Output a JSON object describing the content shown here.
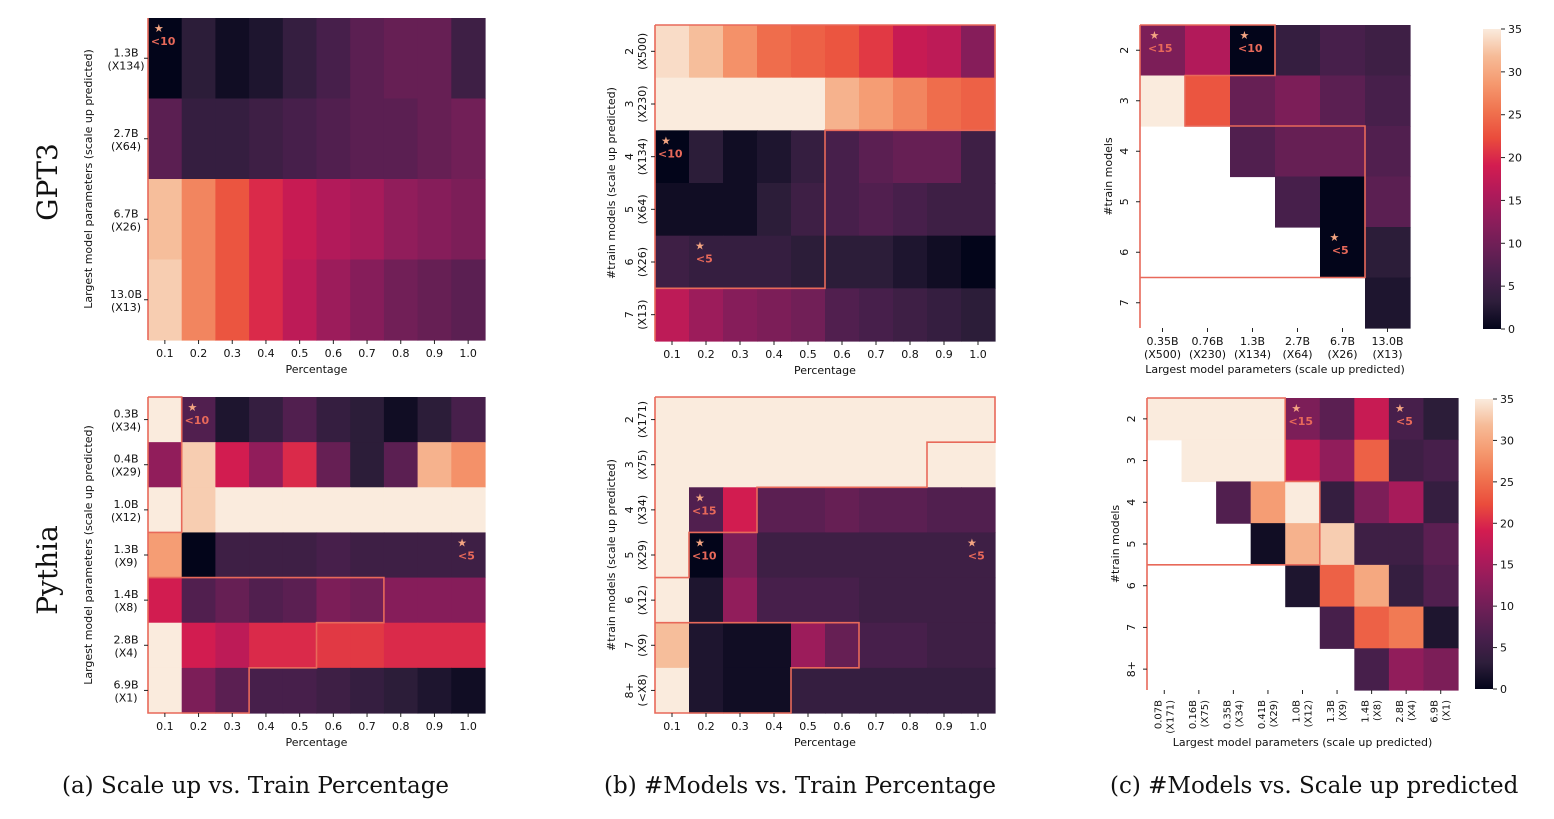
{
  "captions": [
    "(a) Scale up vs. Train Percentage",
    "(b) #Models vs. Train Percentage",
    "(c) #Models vs. Scale up predicted"
  ],
  "row_labels": [
    "GPT3",
    "Pythia"
  ],
  "colorbar": {
    "ticks": [
      "0",
      "5",
      "10",
      "15",
      "20",
      "25",
      "30",
      "35"
    ],
    "max": 35
  },
  "palette": [
    "#03051a",
    "#2e1e3b",
    "#4a1f4d",
    "#6c1f56",
    "#8e1d5b",
    "#b11a5a",
    "#d31c50",
    "#ea4c3c",
    "#f0734f",
    "#f5996f",
    "#f6bb97",
    "#faebdd"
  ],
  "highlight_color": "#e8695a",
  "star_color": "#f4a582",
  "chart_data": [
    {
      "id": "gpt3-a",
      "type": "heatmap",
      "xlabel": "Percentage",
      "ylabel": "Largest model parameters (scale up predicted)",
      "x_ticks": [
        "0.1",
        "0.2",
        "0.3",
        "0.4",
        "0.5",
        "0.6",
        "0.7",
        "0.8",
        "0.9",
        "1.0"
      ],
      "y_ticks": [
        [
          "1.3B",
          "(X134)"
        ],
        [
          "2.7B",
          "(X64)"
        ],
        [
          "6.7B",
          "(X26)"
        ],
        [
          "13.0B",
          "(X13)"
        ]
      ],
      "values": [
        [
          0,
          3,
          1,
          2,
          4,
          6,
          8,
          9,
          9,
          5
        ],
        [
          8,
          4,
          4,
          5,
          6,
          7,
          8,
          8,
          9,
          10
        ],
        [
          32,
          27,
          23,
          20,
          18,
          16,
          15,
          13,
          12,
          11
        ],
        [
          33,
          27,
          23,
          20,
          17,
          14,
          12,
          10,
          9,
          8
        ]
      ],
      "stars": [
        {
          "row": 0,
          "col": 0,
          "label": "<10"
        }
      ],
      "boundary": [
        [
          0,
          0,
          0
        ],
        [
          0,
          0,
          1
        ],
        [
          0,
          0,
          2
        ],
        [
          0,
          0,
          3
        ]
      ]
    },
    {
      "id": "gpt3-b",
      "type": "heatmap",
      "xlabel": "Percentage",
      "ylabel": "#train models (scale up predicted)",
      "x_ticks": [
        "0.1",
        "0.2",
        "0.3",
        "0.4",
        "0.5",
        "0.6",
        "0.7",
        "0.8",
        "0.9",
        "1.0"
      ],
      "y_ticks": [
        [
          "2",
          "(X500)"
        ],
        [
          "3",
          "(X230)"
        ],
        [
          "4",
          "(X134)"
        ],
        [
          "5",
          "(X64)"
        ],
        [
          "6",
          "(X26)"
        ],
        [
          "7",
          "(X13)"
        ]
      ],
      "values": [
        [
          34,
          32,
          28,
          25,
          24,
          23,
          21,
          18,
          17,
          12
        ],
        [
          35,
          35,
          35,
          35,
          35,
          31,
          29,
          27,
          25,
          24
        ],
        [
          0,
          3,
          1,
          2,
          4,
          6,
          8,
          9,
          9,
          5
        ],
        [
          1,
          1,
          1,
          3,
          5,
          6,
          7,
          6,
          5,
          5
        ],
        [
          5,
          4,
          4,
          4,
          3,
          3,
          3,
          2,
          1,
          0
        ],
        [
          17,
          14,
          12,
          11,
          10,
          7,
          6,
          5,
          4,
          3
        ]
      ],
      "stars": [
        {
          "row": 2,
          "col": 0,
          "label": "<10"
        },
        {
          "row": 4,
          "col": 1,
          "label": "<5"
        }
      ],
      "boundary": [
        [
          0,
          10,
          0
        ],
        [
          0,
          10,
          1
        ],
        [
          0,
          5,
          2
        ],
        [
          0,
          5,
          3
        ],
        [
          0,
          5,
          4
        ],
        [
          0,
          0,
          5
        ]
      ]
    },
    {
      "id": "gpt3-c",
      "type": "heatmap",
      "xlabel": "Largest model parameters (scale up predicted)",
      "ylabel": "#train models",
      "x_ticks": [
        [
          "0.35B",
          "(X500)"
        ],
        [
          "0.76B",
          "(X230)"
        ],
        [
          "1.3B",
          "(X134)"
        ],
        [
          "2.7B",
          "(X64)"
        ],
        [
          "6.7B",
          "(X26)"
        ],
        [
          "13.0B",
          "(X13)"
        ]
      ],
      "y_ticks": [
        "2",
        "3",
        "4",
        "5",
        "6",
        "7"
      ],
      "values": [
        [
          11,
          16,
          0,
          4,
          6,
          5
        ],
        [
          35,
          23,
          9,
          11,
          8,
          6
        ],
        [
          null,
          null,
          7,
          9,
          9,
          7
        ],
        [
          null,
          null,
          null,
          6,
          0,
          8
        ],
        [
          null,
          null,
          null,
          null,
          0,
          3
        ],
        [
          null,
          null,
          null,
          null,
          null,
          2
        ]
      ],
      "stars": [
        {
          "row": 0,
          "col": 0,
          "label": "<15"
        },
        {
          "row": 0,
          "col": 2,
          "label": "<10"
        },
        {
          "row": 4,
          "col": 4,
          "label": "<5"
        }
      ],
      "boundary": [
        [
          0,
          3,
          0
        ],
        [
          0,
          1,
          1
        ],
        [
          0,
          5,
          2
        ],
        [
          0,
          5,
          3
        ],
        [
          0,
          5,
          4
        ],
        [
          0,
          0,
          5
        ]
      ]
    },
    {
      "id": "pythia-a",
      "type": "heatmap",
      "xlabel": "Percentage",
      "ylabel": "Largest model parameters (scale up predicted)",
      "x_ticks": [
        "0.1",
        "0.2",
        "0.3",
        "0.4",
        "0.5",
        "0.6",
        "0.7",
        "0.8",
        "0.9",
        "1.0"
      ],
      "y_ticks": [
        [
          "0.3B",
          "(X34)"
        ],
        [
          "0.4B",
          "(X29)"
        ],
        [
          "1.0B",
          "(X12)"
        ],
        [
          "1.3B",
          "(X9)"
        ],
        [
          "1.4B",
          "(X8)"
        ],
        [
          "2.8B",
          "(X4)"
        ],
        [
          "6.9B",
          "(X1)"
        ]
      ],
      "values": [
        [
          35,
          7,
          2,
          4,
          7,
          4,
          3,
          1,
          3,
          6
        ],
        [
          13,
          33,
          19,
          13,
          20,
          9,
          3,
          8,
          31,
          28
        ],
        [
          35,
          33,
          35,
          35,
          35,
          35,
          35,
          35,
          35,
          35
        ],
        [
          29,
          0,
          5,
          5,
          5,
          6,
          5,
          5,
          5,
          5
        ],
        [
          19,
          7,
          9,
          7,
          8,
          11,
          10,
          12,
          12,
          12
        ],
        [
          35,
          19,
          17,
          20,
          20,
          21,
          21,
          20,
          20,
          20
        ],
        [
          35,
          11,
          8,
          6,
          6,
          5,
          4,
          3,
          2,
          1
        ]
      ],
      "stars": [
        {
          "row": 0,
          "col": 1,
          "label": "<10"
        },
        {
          "row": 3,
          "col": 9,
          "label": "<5"
        }
      ],
      "boundary": [
        [
          0,
          1,
          0
        ],
        [
          0,
          1,
          1
        ],
        [
          0,
          1,
          2
        ],
        [
          0,
          0,
          3
        ],
        [
          0,
          7,
          4
        ],
        [
          0,
          5,
          5
        ],
        [
          0,
          3,
          6
        ]
      ]
    },
    {
      "id": "pythia-b",
      "type": "heatmap",
      "xlabel": "Percentage",
      "ylabel": "#train models (scale up predicted)",
      "x_ticks": [
        "0.1",
        "0.2",
        "0.3",
        "0.4",
        "0.5",
        "0.6",
        "0.7",
        "0.8",
        "0.9",
        "1.0"
      ],
      "y_ticks": [
        [
          "2",
          "(X171)"
        ],
        [
          "3",
          "(X75)"
        ],
        [
          "4",
          "(X34)"
        ],
        [
          "5",
          "(X29)"
        ],
        [
          "6",
          "(X12)"
        ],
        [
          "7",
          "(X9)"
        ],
        [
          "8+",
          "(<X8)"
        ]
      ],
      "values": [
        [
          35,
          35,
          35,
          35,
          35,
          35,
          35,
          35,
          35,
          35
        ],
        [
          35,
          35,
          35,
          35,
          35,
          35,
          35,
          35,
          35,
          35
        ],
        [
          35,
          7,
          19,
          8,
          8,
          9,
          8,
          8,
          7,
          7
        ],
        [
          35,
          0,
          11,
          5,
          5,
          5,
          5,
          5,
          5,
          5
        ],
        [
          35,
          2,
          13,
          6,
          6,
          6,
          5,
          5,
          5,
          5
        ],
        [
          32,
          2,
          1,
          1,
          14,
          9,
          6,
          6,
          5,
          5
        ],
        [
          35,
          2,
          1,
          1,
          4,
          4,
          4,
          4,
          4,
          4
        ]
      ],
      "stars": [
        {
          "row": 2,
          "col": 1,
          "label": "<15"
        },
        {
          "row": 3,
          "col": 1,
          "label": "<10"
        },
        {
          "row": 3,
          "col": 9,
          "label": "<5"
        }
      ],
      "boundary": [
        [
          0,
          10,
          0
        ],
        [
          0,
          8,
          1
        ],
        [
          0,
          3,
          2
        ],
        [
          0,
          1,
          3
        ],
        [
          0,
          0,
          4
        ],
        [
          0,
          6,
          5
        ],
        [
          0,
          4,
          6
        ]
      ]
    },
    {
      "id": "pythia-c",
      "type": "heatmap",
      "xlabel": "Largest model parameters (scale up predicted)",
      "ylabel": "#train models",
      "x_ticks": [
        [
          "0.07B",
          "(X171)"
        ],
        [
          "0.16B",
          "(X75)"
        ],
        [
          "0.35B",
          "(X34)"
        ],
        [
          "0.41B",
          "(X29)"
        ],
        [
          "1.0B",
          "(X12)"
        ],
        [
          "1.3B",
          "(X9)"
        ],
        [
          "1.4B",
          "(X8)"
        ],
        [
          "2.8B",
          "(X4)"
        ],
        [
          "6.9B",
          "(X1)"
        ]
      ],
      "y_ticks": [
        "2",
        "3",
        "4",
        "5",
        "6",
        "7",
        "8+"
      ],
      "values": [
        [
          35,
          35,
          35,
          35,
          11,
          8,
          18,
          6,
          3
        ],
        [
          null,
          35,
          35,
          35,
          18,
          13,
          24,
          5,
          6
        ],
        [
          null,
          null,
          7,
          29,
          35,
          4,
          11,
          15,
          4
        ],
        [
          null,
          null,
          null,
          1,
          31,
          33,
          5,
          5,
          8
        ],
        [
          null,
          null,
          null,
          null,
          2,
          24,
          30,
          4,
          7
        ],
        [
          null,
          null,
          null,
          null,
          null,
          6,
          24,
          26,
          2
        ],
        [
          null,
          null,
          null,
          null,
          null,
          null,
          6,
          13,
          11
        ]
      ],
      "stars": [
        {
          "row": 0,
          "col": 4,
          "label": "<15"
        },
        {
          "row": 0,
          "col": 7,
          "label": "<5"
        }
      ],
      "boundary": [
        [
          0,
          4,
          0
        ],
        [
          0,
          4,
          1
        ],
        [
          0,
          5,
          2
        ],
        [
          0,
          5,
          3
        ],
        [
          0,
          0,
          4
        ],
        [
          0,
          0,
          5
        ],
        [
          0,
          0,
          6
        ]
      ]
    }
  ]
}
